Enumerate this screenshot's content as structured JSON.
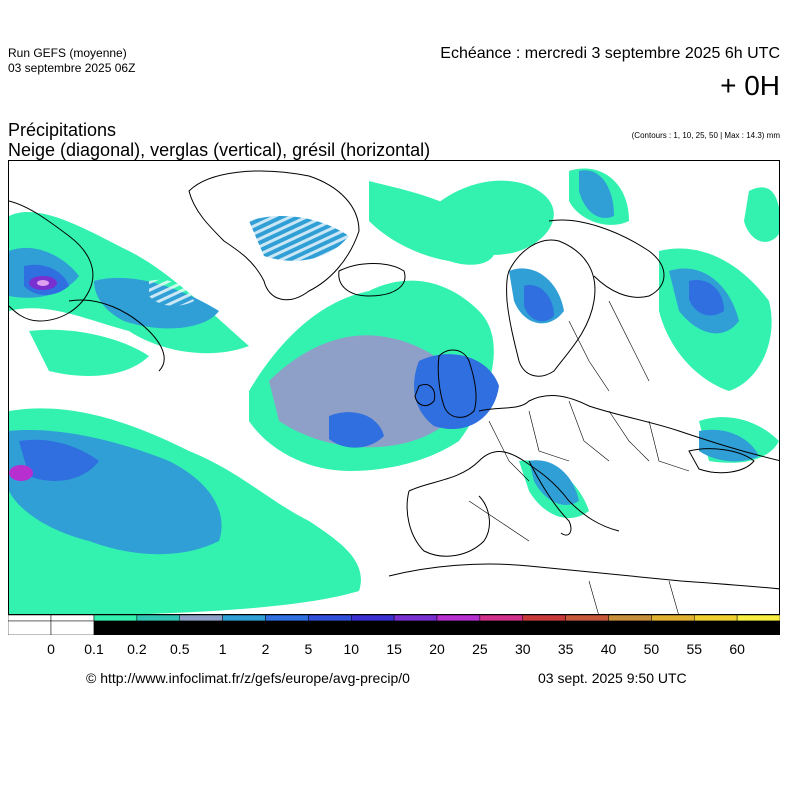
{
  "header": {
    "run_title": "Run GEFS (moyenne)",
    "run_date": "03 septembre 2025 06Z",
    "echeance": "Echéance : mercredi 3 septembre 2025 6h UTC",
    "offset": "+ 0H",
    "title_line1": "Précipitations",
    "title_line2": "Neige (diagonal), verglas (vertical), grésil (horizontal)",
    "contours_note": "(Contours : 1, 10, 25, 50 | Max : 14.3) mm"
  },
  "scale": {
    "labels": [
      "0",
      "0.1",
      "0.2",
      "0.5",
      "1",
      "2",
      "5",
      "10",
      "15",
      "20",
      "25",
      "30",
      "35",
      "40",
      "50",
      "55",
      "60"
    ],
    "colors": [
      "#ffffff",
      "#ffffff",
      "#33f2b0",
      "#2fc4b4",
      "#8ea0c8",
      "#2f9fd6",
      "#2f6fe0",
      "#2f4fd8",
      "#3a2fd0",
      "#7a2fd0",
      "#b82fd0",
      "#d02f8a",
      "#c83a3a",
      "#c8583a",
      "#c8903a",
      "#e0b030",
      "#f0d030",
      "#f8f040"
    ]
  },
  "legend_colors": {
    "very_light": "#33f2b0",
    "light": "#2fc4b4",
    "grey_blue": "#8ea0c8",
    "medium": "#2f9fd6",
    "heavy": "#2f6fe0",
    "very_heavy": "#2f4fd8",
    "extreme": "#b82fd0"
  },
  "footer": {
    "url": "© http://www.infoclimat.fr/z/gefs/europe/avg-precip/0",
    "timestamp": "03 sept. 2025  9:50 UTC"
  }
}
